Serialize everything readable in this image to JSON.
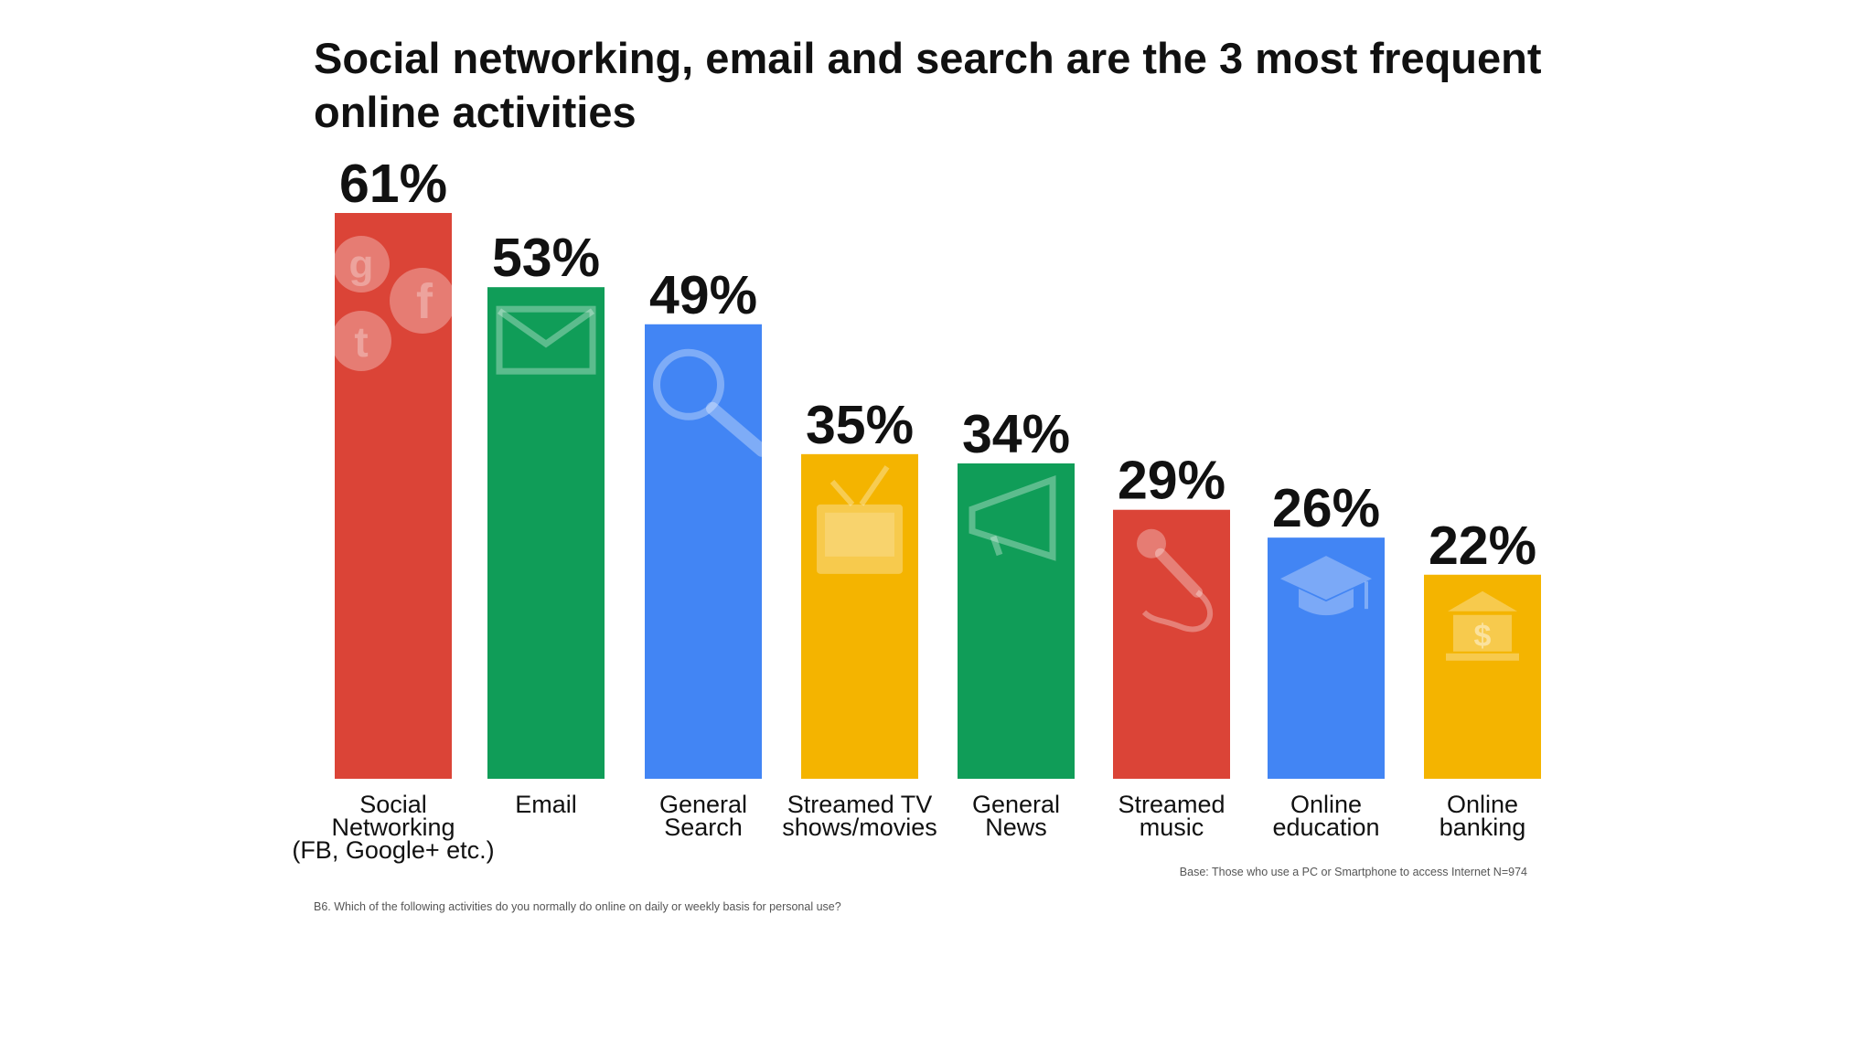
{
  "chart_data": {
    "type": "bar",
    "title": "Social networking, email and search are the 3 most frequent online activities",
    "xlabel": "",
    "ylabel": "",
    "ylim": [
      0,
      61
    ],
    "grid": false,
    "legend": "none",
    "categories": [
      "Social Networking (FB, Google+ etc.)",
      "Email",
      "General Search",
      "Streamed TV shows/movies",
      "General News",
      "Streamed music",
      "Online education",
      "Online banking"
    ],
    "category_lines": [
      [
        "Social",
        "Networking",
        "(FB, Google+ etc.)"
      ],
      [
        "Email"
      ],
      [
        "General",
        "Search"
      ],
      [
        "Streamed TV",
        "shows/movies"
      ],
      [
        "General",
        "News"
      ],
      [
        "Streamed",
        "music"
      ],
      [
        "Online",
        "education"
      ],
      [
        "Online",
        "banking"
      ]
    ],
    "values": [
      61,
      53,
      49,
      35,
      34,
      29,
      26,
      22
    ],
    "value_labels": [
      "61%",
      "53%",
      "49%",
      "35%",
      "34%",
      "29%",
      "26%",
      "22%"
    ],
    "icons": [
      "social-icons",
      "envelope-icon",
      "magnifier-icon",
      "tv-icon",
      "megaphone-icon",
      "microphone-icon",
      "graduation-cap-icon",
      "bank-icon"
    ],
    "colors": [
      "#DB4437",
      "#109D58",
      "#4285F4",
      "#F4B400",
      "#109D58",
      "#DB4437",
      "#4285F4",
      "#F4B400"
    ],
    "base_note": "Base: Those who use a PC or Smartphone to access Internet N=974",
    "question_note": "B6. Which of the following activities do you normally do online on daily or weekly basis for personal use?"
  }
}
